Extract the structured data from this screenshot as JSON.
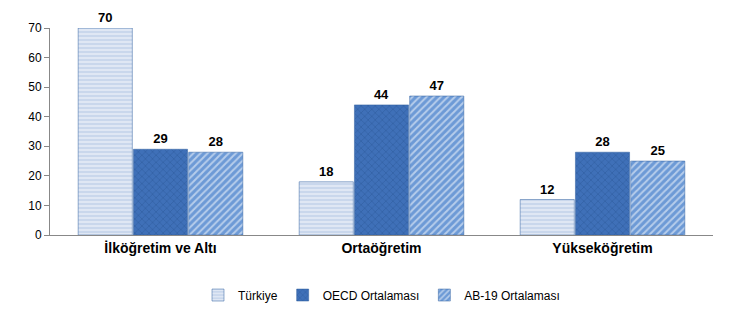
{
  "chart_data": {
    "type": "bar",
    "categories": [
      "İlköğretim ve Altı",
      "Ortaöğretim",
      "Yükseköğretim"
    ],
    "series": [
      {
        "name": "Türkiye",
        "color": "#c9d7ec",
        "values": [
          70,
          18,
          12
        ]
      },
      {
        "name": "OECD Ortalaması",
        "color": "#3f70b8",
        "values": [
          29,
          44,
          28
        ]
      },
      {
        "name": "AB-19 Ortalaması",
        "color": "#6d9ad6",
        "values": [
          28,
          47,
          25
        ]
      }
    ],
    "ylim": [
      0,
      70
    ],
    "yticks": [
      0,
      10,
      20,
      30,
      40,
      50,
      60,
      70
    ],
    "grid": false,
    "legend": "bottom",
    "data_labels": true
  }
}
